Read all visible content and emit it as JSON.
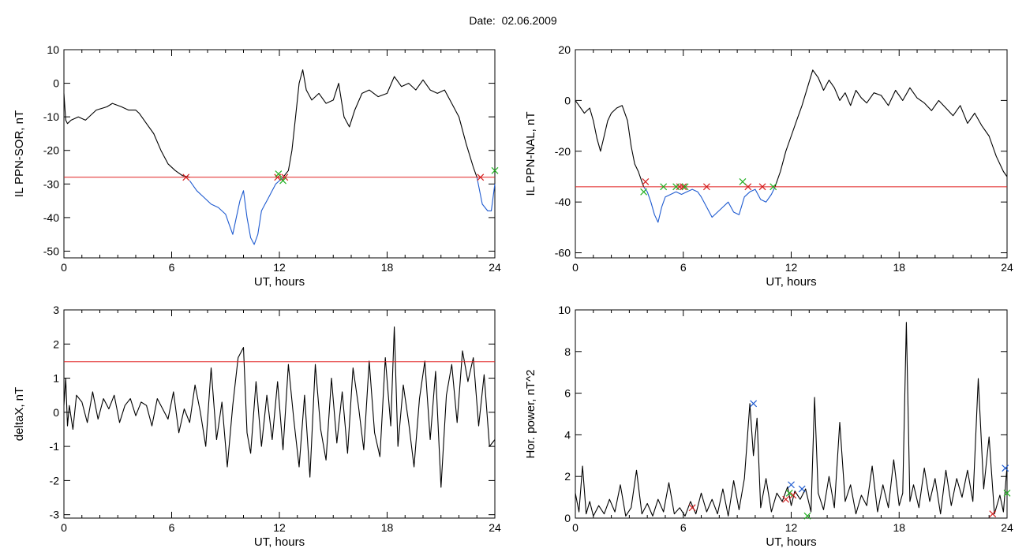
{
  "title": "Date:  02.06.2009",
  "chart_data": [
    {
      "type": "line",
      "xlabel": "UT, hours",
      "ylabel": "IL PPN-SOR, nT",
      "xlim": [
        0,
        24
      ],
      "ylim": [
        -52,
        10
      ],
      "xticks": [
        0,
        6,
        12,
        18,
        24
      ],
      "xtick_labels": [
        "0",
        "6",
        "12",
        "18",
        "24"
      ],
      "yticks": [
        10,
        0,
        -10,
        -20,
        -30,
        -40,
        -50
      ],
      "ytick_labels": [
        "10",
        "0",
        "-10",
        "-20",
        "-30",
        "-40",
        "-50"
      ],
      "threshold": -28,
      "series": [
        {
          "color": "#000000",
          "x": [
            0,
            0.05,
            0.1,
            0.2,
            0.4,
            0.8,
            1.2,
            1.8,
            2.4,
            2.7,
            3.2,
            3.6,
            4.0,
            4.2,
            4.6,
            5.0,
            5.4,
            5.8,
            6.2,
            6.6,
            7.0
          ],
          "y": [
            -3,
            -7,
            -11,
            -12,
            -11,
            -10,
            -11,
            -8,
            -7,
            -6,
            -7,
            -8,
            -8,
            -9,
            -12,
            -15,
            -20,
            -24,
            -26,
            -27.5,
            -28
          ]
        },
        {
          "color": "#1f5bd0",
          "x": [
            7.0,
            7.4,
            7.8,
            8.2,
            8.6,
            9.0,
            9.2,
            9.4,
            9.6,
            9.8,
            10.0,
            10.2,
            10.4,
            10.6,
            10.8,
            11.0,
            11.2,
            11.4,
            11.6,
            11.8,
            12.0,
            12.2
          ],
          "y": [
            -29,
            -32,
            -34,
            -36,
            -37,
            -39,
            -42,
            -45,
            -40,
            -35,
            -32,
            -40,
            -46,
            -48,
            -45,
            -38,
            -36,
            -34,
            -32,
            -30,
            -29,
            -28
          ]
        },
        {
          "color": "#000000",
          "x": [
            12.2,
            12.5,
            12.7,
            12.9,
            13.1,
            13.3,
            13.5,
            13.8,
            14.2,
            14.6,
            15.0,
            15.3,
            15.6,
            15.9,
            16.2,
            16.6,
            17.0,
            17.5,
            18.0,
            18.4,
            18.8,
            19.2,
            19.6,
            20.0,
            20.4,
            20.8,
            21.2,
            21.6,
            22.0,
            22.4,
            22.8,
            23.0
          ],
          "y": [
            -28,
            -26,
            -20,
            -10,
            0,
            4,
            -2,
            -5,
            -3,
            -6,
            -5,
            0,
            -10,
            -13,
            -8,
            -3,
            -2,
            -4,
            -3,
            2,
            -1,
            0,
            -2,
            1,
            -2,
            -3,
            -2,
            -6,
            -10,
            -18,
            -25,
            -28
          ]
        },
        {
          "color": "#1f5bd0",
          "x": [
            23.0,
            23.3,
            23.6,
            23.8,
            24.0
          ],
          "y": [
            -28,
            -36,
            -38,
            -38,
            -30
          ]
        }
      ],
      "markers": [
        {
          "x": 6.8,
          "y": -28,
          "color": "#d42020"
        },
        {
          "x": 11.9,
          "y": -28,
          "color": "#d42020"
        },
        {
          "x": 12.3,
          "y": -28,
          "color": "#d42020"
        },
        {
          "x": 23.2,
          "y": -28,
          "color": "#d42020"
        },
        {
          "x": 11.95,
          "y": -27,
          "color": "#22b022"
        },
        {
          "x": 12.2,
          "y": -29,
          "color": "#22b022"
        },
        {
          "x": 24.0,
          "y": -26,
          "color": "#22b022"
        }
      ]
    },
    {
      "type": "line",
      "xlabel": "UT, hours",
      "ylabel": "IL PPN-NAL, nT",
      "xlim": [
        0,
        24
      ],
      "ylim": [
        -62,
        20
      ],
      "xticks": [
        0,
        6,
        12,
        18,
        24
      ],
      "xtick_labels": [
        "0",
        "6",
        "12",
        "18",
        "24"
      ],
      "yticks": [
        20,
        0,
        -20,
        -40,
        -60
      ],
      "ytick_labels": [
        "20",
        "0",
        "-20",
        "-40",
        "-60"
      ],
      "threshold": -34,
      "series": [
        {
          "color": "#000000",
          "x": [
            0,
            0.2,
            0.5,
            0.8,
            1.0,
            1.2,
            1.4,
            1.6,
            1.8,
            2.0,
            2.3,
            2.6,
            2.9,
            3.1,
            3.3,
            3.5,
            3.7,
            3.8
          ],
          "y": [
            0,
            -2,
            -5,
            -3,
            -8,
            -15,
            -20,
            -14,
            -8,
            -5,
            -3,
            -2,
            -8,
            -18,
            -25,
            -28,
            -32,
            -34
          ]
        },
        {
          "color": "#1f5bd0",
          "x": [
            3.8,
            4.0,
            4.2,
            4.4,
            4.6,
            4.8,
            5.0,
            5.3,
            5.6,
            5.9,
            6.2,
            6.5,
            6.8,
            7.0,
            7.3,
            7.6,
            7.9,
            8.2,
            8.5,
            8.8,
            9.1,
            9.4,
            9.7,
            10.0,
            10.3,
            10.6,
            10.9,
            11.1
          ],
          "y": [
            -34,
            -36,
            -40,
            -45,
            -48,
            -42,
            -38,
            -37,
            -36,
            -37,
            -36,
            -35,
            -36,
            -38,
            -42,
            -46,
            -44,
            -42,
            -40,
            -44,
            -45,
            -38,
            -36,
            -35,
            -39,
            -40,
            -37,
            -34
          ]
        },
        {
          "color": "#000000",
          "x": [
            11.1,
            11.4,
            11.7,
            12.0,
            12.3,
            12.6,
            12.9,
            13.2,
            13.5,
            13.8,
            14.1,
            14.4,
            14.7,
            15.0,
            15.3,
            15.6,
            15.9,
            16.2,
            16.6,
            17.0,
            17.4,
            17.8,
            18.2,
            18.6,
            19.0,
            19.4,
            19.8,
            20.2,
            20.6,
            21.0,
            21.4,
            21.8,
            22.2,
            22.6,
            23.0,
            23.4,
            23.8,
            24.0
          ],
          "y": [
            -34,
            -28,
            -20,
            -14,
            -8,
            -2,
            5,
            12,
            9,
            4,
            8,
            5,
            0,
            3,
            -2,
            4,
            1,
            -1,
            3,
            2,
            -2,
            4,
            0,
            5,
            1,
            -1,
            -4,
            0,
            -3,
            -6,
            -2,
            -9,
            -5,
            -10,
            -14,
            -22,
            -28,
            -30
          ]
        }
      ],
      "markers": [
        {
          "x": 3.9,
          "y": -32,
          "color": "#d42020"
        },
        {
          "x": 5.8,
          "y": -34,
          "color": "#d42020"
        },
        {
          "x": 6.0,
          "y": -34,
          "color": "#d42020"
        },
        {
          "x": 7.3,
          "y": -34,
          "color": "#d42020"
        },
        {
          "x": 9.6,
          "y": -34,
          "color": "#d42020"
        },
        {
          "x": 10.4,
          "y": -34,
          "color": "#d42020"
        },
        {
          "x": 3.8,
          "y": -36,
          "color": "#22b022"
        },
        {
          "x": 4.9,
          "y": -34,
          "color": "#22b022"
        },
        {
          "x": 5.6,
          "y": -34,
          "color": "#22b022"
        },
        {
          "x": 6.1,
          "y": -34,
          "color": "#22b022"
        },
        {
          "x": 9.3,
          "y": -32,
          "color": "#22b022"
        },
        {
          "x": 11.0,
          "y": -34,
          "color": "#22b022"
        }
      ]
    },
    {
      "type": "line",
      "xlabel": "UT, hours",
      "ylabel": "deltaX, nT",
      "xlim": [
        0,
        24
      ],
      "ylim": [
        -3.1,
        3
      ],
      "xticks": [
        0,
        6,
        12,
        18,
        24
      ],
      "xtick_labels": [
        "0",
        "6",
        "12",
        "18",
        "24"
      ],
      "yticks": [
        3,
        2,
        1,
        0,
        -1,
        -2,
        -3
      ],
      "ytick_labels": [
        "3",
        "2",
        "1",
        "0",
        "-1",
        "-2",
        "-3"
      ],
      "threshold": 1.48,
      "series": [
        {
          "color": "#000000",
          "x": [
            0,
            0.1,
            0.2,
            0.3,
            0.5,
            0.7,
            1.0,
            1.3,
            1.6,
            1.9,
            2.2,
            2.5,
            2.8,
            3.1,
            3.4,
            3.7,
            4.0,
            4.3,
            4.6,
            4.9,
            5.2,
            5.5,
            5.8,
            6.1,
            6.4,
            6.7,
            7.0,
            7.3,
            7.6,
            7.9,
            8.2,
            8.5,
            8.8,
            9.1,
            9.4,
            9.7,
            10.0,
            10.2,
            10.4,
            10.7,
            11.0,
            11.3,
            11.6,
            11.9,
            12.2,
            12.5,
            12.8,
            13.1,
            13.4,
            13.7,
            14.0,
            14.3,
            14.6,
            14.9,
            15.2,
            15.5,
            15.8,
            16.1,
            16.4,
            16.7,
            17.0,
            17.3,
            17.6,
            17.9,
            18.2,
            18.4,
            18.6,
            18.9,
            19.2,
            19.5,
            19.8,
            20.1,
            20.4,
            20.7,
            21.0,
            21.3,
            21.6,
            21.9,
            22.2,
            22.5,
            22.8,
            23.1,
            23.4,
            23.7,
            24.0
          ],
          "y": [
            0.2,
            1.0,
            -0.4,
            0.2,
            -0.5,
            0.5,
            0.3,
            -0.3,
            0.6,
            -0.2,
            0.4,
            0.1,
            0.5,
            -0.3,
            0.2,
            0.4,
            -0.1,
            0.3,
            0.2,
            -0.4,
            0.4,
            0.1,
            -0.2,
            0.6,
            -0.6,
            0.1,
            -0.3,
            0.8,
            0.0,
            -1.0,
            1.3,
            -0.8,
            0.3,
            -1.6,
            0.2,
            1.6,
            1.9,
            -0.6,
            -1.2,
            0.9,
            -1.0,
            0.5,
            -0.8,
            0.9,
            -1.1,
            1.4,
            -0.2,
            -1.6,
            0.5,
            -1.9,
            1.4,
            -0.5,
            -1.4,
            1.0,
            -0.9,
            0.6,
            -1.2,
            1.3,
            0.2,
            -1.1,
            1.5,
            -0.6,
            -1.3,
            1.6,
            -0.4,
            2.5,
            -1.0,
            0.8,
            -0.3,
            -1.6,
            0.4,
            1.5,
            -0.8,
            1.2,
            -2.2,
            0.5,
            1.4,
            -0.3,
            1.8,
            0.9,
            1.6,
            -0.4,
            1.1,
            -1.0,
            -0.8
          ]
        }
      ],
      "markers": []
    },
    {
      "type": "line",
      "xlabel": "UT, hours",
      "ylabel": "Hor. power, nT^2",
      "xlim": [
        0,
        24
      ],
      "ylim": [
        0,
        10
      ],
      "xticks": [
        0,
        6,
        12,
        18,
        24
      ],
      "xtick_labels": [
        "0",
        "6",
        "12",
        "18",
        "24"
      ],
      "yticks": [
        10,
        8,
        6,
        4,
        2,
        0
      ],
      "ytick_labels": [
        "10",
        "8",
        "6",
        "4",
        "2",
        "0"
      ],
      "threshold": null,
      "series": [
        {
          "color": "#000000",
          "x": [
            0,
            0.2,
            0.4,
            0.6,
            0.8,
            1.0,
            1.3,
            1.6,
            1.9,
            2.2,
            2.5,
            2.8,
            3.1,
            3.4,
            3.7,
            4.0,
            4.3,
            4.6,
            4.9,
            5.2,
            5.5,
            5.8,
            6.1,
            6.4,
            6.7,
            7.0,
            7.3,
            7.6,
            7.9,
            8.2,
            8.5,
            8.8,
            9.1,
            9.4,
            9.7,
            9.9,
            10.1,
            10.3,
            10.6,
            10.9,
            11.2,
            11.5,
            11.8,
            12.0,
            12.2,
            12.5,
            12.8,
            13.1,
            13.3,
            13.5,
            13.8,
            14.1,
            14.4,
            14.7,
            15.0,
            15.3,
            15.6,
            15.9,
            16.2,
            16.5,
            16.8,
            17.1,
            17.4,
            17.7,
            18.0,
            18.2,
            18.4,
            18.6,
            18.8,
            19.1,
            19.4,
            19.7,
            20.0,
            20.3,
            20.6,
            20.9,
            21.2,
            21.5,
            21.8,
            22.1,
            22.4,
            22.7,
            23.0,
            23.3,
            23.6,
            23.8,
            24.0
          ],
          "y": [
            1.2,
            0.3,
            2.5,
            0.2,
            0.8,
            0.1,
            0.6,
            0.2,
            0.9,
            0.3,
            1.6,
            0.1,
            0.5,
            2.3,
            0.2,
            0.7,
            0.1,
            0.9,
            0.3,
            1.7,
            0.2,
            0.5,
            0.1,
            0.8,
            0.2,
            1.2,
            0.3,
            0.9,
            0.2,
            1.4,
            0.1,
            1.8,
            0.4,
            1.9,
            5.5,
            3.0,
            4.8,
            0.5,
            1.9,
            0.3,
            1.2,
            0.8,
            1.5,
            0.6,
            1.3,
            0.9,
            1.4,
            0.3,
            5.8,
            1.2,
            0.4,
            2.0,
            0.5,
            4.6,
            0.8,
            1.6,
            0.2,
            1.1,
            0.6,
            2.5,
            0.3,
            1.6,
            0.5,
            2.8,
            0.6,
            1.2,
            9.4,
            0.8,
            1.6,
            0.5,
            2.4,
            0.8,
            1.9,
            0.2,
            2.3,
            0.6,
            1.9,
            1.0,
            2.3,
            0.8,
            6.7,
            1.4,
            3.9,
            0.2,
            1.1,
            0.3,
            2.5
          ]
        }
      ],
      "markers": [
        {
          "x": 6.5,
          "y": 0.5,
          "color": "#d42020"
        },
        {
          "x": 11.7,
          "y": 0.9,
          "color": "#d42020"
        },
        {
          "x": 12.1,
          "y": 1.1,
          "color": "#d42020"
        },
        {
          "x": 23.2,
          "y": 0.2,
          "color": "#d42020"
        },
        {
          "x": 9.9,
          "y": 5.5,
          "color": "#1f5bd0"
        },
        {
          "x": 12.0,
          "y": 1.6,
          "color": "#1f5bd0"
        },
        {
          "x": 12.6,
          "y": 1.4,
          "color": "#1f5bd0"
        },
        {
          "x": 23.9,
          "y": 2.4,
          "color": "#1f5bd0"
        },
        {
          "x": 11.9,
          "y": 1.2,
          "color": "#22b022"
        },
        {
          "x": 12.9,
          "y": 0.1,
          "color": "#22b022"
        },
        {
          "x": 24.0,
          "y": 1.2,
          "color": "#22b022"
        }
      ]
    }
  ]
}
